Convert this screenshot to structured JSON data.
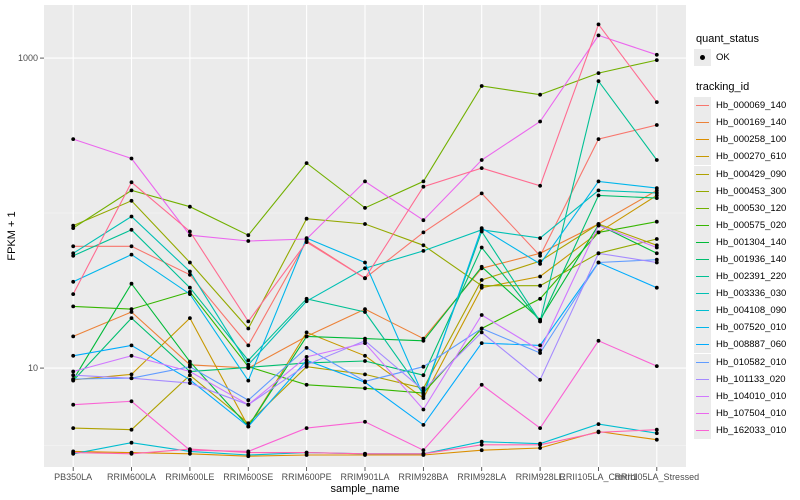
{
  "chart_data": {
    "type": "line",
    "xlabel": "sample_name",
    "ylabel": "FPKM + 1",
    "y_scale": "log10",
    "ylim": [
      2.3,
      2200
    ],
    "y_ticks": [
      10,
      1000
    ],
    "y_tick_labels": [
      "10",
      "1000"
    ],
    "y_minor_ticks": [
      3.162,
      100
    ],
    "grid": true,
    "background": "#ebebeb",
    "legend_placement": "right",
    "categories": [
      "PB350LA",
      "RRIM600LA",
      "RRIM600LE",
      "RRIM600SE",
      "RRIM600PE",
      "RRIM901LA",
      "RRIM928BA",
      "RRIM928LA",
      "RRIM928LE",
      "RRII105LA_Control",
      "RRII105LA_Stressed"
    ],
    "series": [
      {
        "name": "Hb_000069_140",
        "color": "#F8766D",
        "values": [
          61,
          61,
          40,
          14,
          66,
          38,
          75,
          134,
          53,
          300,
          370
        ]
      },
      {
        "name": "Hb_000169_140",
        "color": "#EC8239",
        "values": [
          16,
          23,
          10.5,
          10,
          16,
          24,
          15.5,
          44,
          55,
          85,
          140
        ]
      },
      {
        "name": "Hb_000258_100",
        "color": "#DB8E00",
        "values": [
          2.9,
          2.85,
          2.8,
          2.7,
          2.75,
          2.75,
          2.75,
          2.95,
          3.05,
          3.9,
          3.45
        ]
      },
      {
        "name": "Hb_000270_610",
        "color": "#C79800",
        "values": [
          8.4,
          9.1,
          21,
          4.2,
          17,
          12,
          6.4,
          33,
          39,
          75,
          130
        ]
      },
      {
        "name": "Hb_000429_090",
        "color": "#AFA100",
        "values": [
          4.1,
          4,
          9,
          4.4,
          10.2,
          9.1,
          7.4,
          37,
          49,
          85,
          62
        ]
      },
      {
        "name": "Hb_000453_300",
        "color": "#94A900",
        "values": [
          83,
          120,
          48,
          18,
          92,
          85,
          62,
          34,
          34,
          55,
          68
        ]
      },
      {
        "name": "Hb_000530_120",
        "color": "#72B000",
        "values": [
          80,
          140,
          110,
          72,
          210,
          108,
          160,
          660,
          580,
          800,
          970
        ]
      },
      {
        "name": "Hb_000575_020",
        "color": "#36B600",
        "values": [
          25,
          24,
          31,
          10.2,
          7.8,
          7.4,
          6.9,
          18,
          28,
          75,
          88
        ]
      },
      {
        "name": "Hb_001304_140",
        "color": "#00BA38",
        "values": [
          8.4,
          35,
          11,
          4.2,
          16,
          15.5,
          15,
          45,
          20.5,
          84,
          55
        ]
      },
      {
        "name": "Hb_001936_140",
        "color": "#00BE6F",
        "values": [
          8.3,
          21,
          9.5,
          10.1,
          10.8,
          11.1,
          9,
          60,
          20,
          130,
          125
        ]
      },
      {
        "name": "Hb_002391_220",
        "color": "#00C094",
        "values": [
          53,
          78,
          33,
          11.2,
          28,
          23,
          6.8,
          76,
          20,
          710,
          220
        ]
      },
      {
        "name": "Hb_003336_030",
        "color": "#00C0B4",
        "values": [
          55,
          95,
          42,
          10.5,
          27,
          44,
          57,
          78,
          69,
          140,
          135
        ]
      },
      {
        "name": "Hb_004108_090",
        "color": "#00BDD0",
        "values": [
          2.8,
          3.3,
          2.9,
          2.75,
          2.85,
          2.8,
          2.8,
          3.35,
          3.25,
          4.35,
          3.8
        ]
      },
      {
        "name": "Hb_007520_010",
        "color": "#00B6EB",
        "values": [
          36,
          54,
          30,
          8.3,
          69,
          48,
          6.6,
          80,
          47,
          160,
          145
        ]
      },
      {
        "name": "Hb_008887_060",
        "color": "#00ABFD",
        "values": [
          12,
          14,
          8.4,
          4.2,
          11.2,
          8.1,
          4.3,
          14.5,
          14,
          48,
          33
        ]
      },
      {
        "name": "Hb_010582_010",
        "color": "#619CFF",
        "values": [
          8.5,
          8.6,
          10.2,
          6.2,
          13.5,
          8.2,
          10.2,
          18,
          12.5,
          48,
          50
        ]
      },
      {
        "name": "Hb_101133_020",
        "color": "#A58AFF",
        "values": [
          9,
          8.6,
          8,
          5.8,
          10.5,
          15,
          7.2,
          17,
          8.4,
          55,
          48
        ]
      },
      {
        "name": "Hb_104010_010",
        "color": "#D078FF",
        "values": [
          9.5,
          12,
          9.5,
          5.8,
          11.8,
          14.5,
          5.4,
          22,
          13,
          83,
          60
        ]
      },
      {
        "name": "Hb_107504_010",
        "color": "#EB67EE",
        "values": [
          300,
          225,
          72,
          66,
          68,
          160,
          90,
          220,
          390,
          1400,
          1050
        ]
      },
      {
        "name": "Hb_162033_010",
        "color": "#FA62D4",
        "values": [
          5.8,
          6.1,
          2.95,
          2.9,
          4.1,
          4.5,
          2.95,
          7.8,
          4.1,
          15,
          10.3
        ]
      },
      {
        "name": "",
        "color": "#FF65B0",
        "values": [
          2.85,
          2.8,
          3,
          2.85,
          2.85,
          2.8,
          2.8,
          3.2,
          3.2,
          3.85,
          4
        ]
      },
      {
        "name": "",
        "color": "#FF6C91",
        "values": [
          30,
          158,
          76,
          20,
          65,
          38,
          148,
          195,
          150,
          1650,
          520
        ]
      }
    ]
  },
  "legend": {
    "quant_title": "quant_status",
    "quant_item": "OK",
    "tracking_title": "tracking_id",
    "items": [
      "Hb_000069_140",
      "Hb_000169_140",
      "Hb_000258_100",
      "Hb_000270_610",
      "Hb_000429_090",
      "Hb_000453_300",
      "Hb_000530_120",
      "Hb_000575_020",
      "Hb_001304_140",
      "Hb_001936_140",
      "Hb_002391_220",
      "Hb_003336_030",
      "Hb_004108_090",
      "Hb_007520_010",
      "Hb_008887_060",
      "Hb_010582_010",
      "Hb_101133_020",
      "Hb_104010_010",
      "Hb_107504_010",
      "Hb_162033_010"
    ],
    "colors": [
      "#F8766D",
      "#EC8239",
      "#DB8E00",
      "#C79800",
      "#AFA100",
      "#94A900",
      "#72B000",
      "#36B600",
      "#00BA38",
      "#00BE6F",
      "#00C094",
      "#00C0B4",
      "#00BDD0",
      "#00B6EB",
      "#00ABFD",
      "#619CFF",
      "#A58AFF",
      "#D078FF",
      "#EB67EE",
      "#FA62D4"
    ]
  }
}
